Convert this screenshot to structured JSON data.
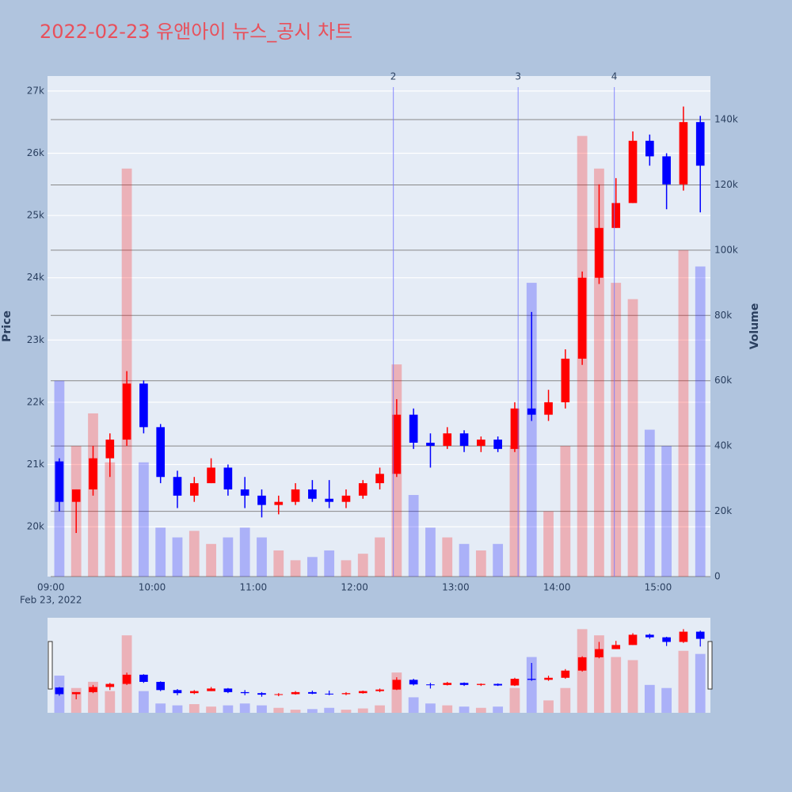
{
  "chart_data": {
    "type": "candlestick",
    "title": "2022-02-23 유앤아이 뉴스_공시 차트",
    "x": [
      "09:00",
      "09:10",
      "09:20",
      "09:30",
      "09:40",
      "09:50",
      "10:00",
      "10:10",
      "10:20",
      "10:30",
      "10:40",
      "10:50",
      "11:00",
      "11:10",
      "11:20",
      "11:30",
      "11:40",
      "11:50",
      "12:00",
      "12:10",
      "12:20",
      "12:30",
      "12:40",
      "12:50",
      "13:00",
      "13:10",
      "13:20",
      "13:30",
      "13:40",
      "13:50",
      "14:00",
      "14:10",
      "14:20",
      "14:30",
      "14:40",
      "14:50",
      "15:00",
      "15:10",
      "15:20"
    ],
    "open": [
      21050,
      20400,
      20600,
      21100,
      21400,
      22300,
      21600,
      20800,
      20500,
      20700,
      20950,
      20600,
      20500,
      20350,
      20400,
      20600,
      20450,
      20400,
      20500,
      20700,
      20850,
      21800,
      21350,
      21300,
      21500,
      21300,
      21400,
      21250,
      21900,
      21800,
      22000,
      22700,
      24000,
      24800,
      25200,
      26200,
      25950,
      25500,
      26500
    ],
    "high": [
      21100,
      20600,
      21300,
      21500,
      22500,
      22350,
      21650,
      20900,
      20800,
      21100,
      21000,
      20800,
      20600,
      20500,
      20700,
      20750,
      20750,
      20600,
      20750,
      20950,
      22050,
      21900,
      21500,
      21600,
      21550,
      21450,
      21450,
      22000,
      23450,
      22200,
      22850,
      24100,
      25500,
      25600,
      26350,
      26300,
      26000,
      26750,
      26600
    ],
    "low": [
      20250,
      19900,
      20500,
      20800,
      21300,
      21500,
      20700,
      20300,
      20400,
      20700,
      20500,
      20300,
      20150,
      20200,
      20350,
      20400,
      20300,
      20300,
      20450,
      20600,
      20800,
      21250,
      20950,
      21250,
      21200,
      21200,
      21200,
      21200,
      21700,
      21700,
      21900,
      22600,
      23900,
      24800,
      25200,
      25800,
      25100,
      25400,
      25050
    ],
    "close": [
      20400,
      20600,
      21100,
      21400,
      22300,
      21600,
      20800,
      20500,
      20700,
      20950,
      20600,
      20500,
      20350,
      20400,
      20600,
      20450,
      20400,
      20500,
      20700,
      20850,
      21800,
      21350,
      21300,
      21500,
      21300,
      21400,
      21250,
      21900,
      21800,
      22000,
      22700,
      24000,
      24800,
      25200,
      26200,
      25950,
      25500,
      26500,
      25800
    ],
    "volume": [
      60000,
      40000,
      50000,
      35000,
      125000,
      35000,
      15000,
      12000,
      14000,
      10000,
      12000,
      15000,
      12000,
      8000,
      5000,
      6000,
      8000,
      5000,
      7000,
      12000,
      65000,
      25000,
      15000,
      12000,
      10000,
      8000,
      10000,
      40000,
      90000,
      20000,
      40000,
      135000,
      125000,
      90000,
      85000,
      45000,
      40000,
      100000,
      95000
    ],
    "increasing_color": "#ff0000",
    "decreasing_color": "#0000ff",
    "xlim": [
      "08:58",
      "15:31"
    ],
    "xticks": [
      "09:00",
      "10:00",
      "11:00",
      "12:00",
      "13:00",
      "14:00",
      "15:00"
    ],
    "x_date_label": "Feb 23, 2022",
    "ylim": [
      19200,
      27240
    ],
    "yticks": [
      {
        "value": 20000,
        "label": "20k"
      },
      {
        "value": 21000,
        "label": "21k"
      },
      {
        "value": 22000,
        "label": "22k"
      },
      {
        "value": 23000,
        "label": "23k"
      },
      {
        "value": 24000,
        "label": "24k"
      },
      {
        "value": 25000,
        "label": "25k"
      },
      {
        "value": 26000,
        "label": "26k"
      },
      {
        "value": 27000,
        "label": "27k"
      }
    ],
    "y_label": "Price",
    "y2lim": [
      0,
      153350
    ],
    "y2ticks": [
      0,
      {
        "value": 20000,
        "label": "20k"
      },
      {
        "value": 40000,
        "label": "40k"
      },
      {
        "value": 60000,
        "label": "60k"
      },
      {
        "value": 80000,
        "label": "80k"
      },
      {
        "value": 100000,
        "label": "100k"
      },
      {
        "value": 120000,
        "label": "120k"
      },
      {
        "value": 140000,
        "label": "140k"
      }
    ],
    "y2_label": "Volume",
    "annotations": [
      {
        "x": "12:23",
        "text": "2"
      },
      {
        "x": "13:37",
        "text": "3"
      },
      {
        "x": "14:34",
        "text": "4"
      }
    ]
  }
}
